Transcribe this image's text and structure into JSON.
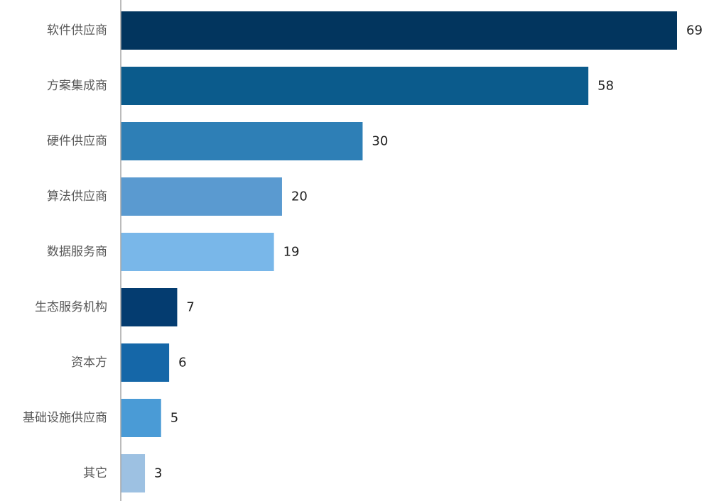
{
  "chart_data": {
    "type": "bar",
    "orientation": "horizontal",
    "categories": [
      "软件供应商",
      "方案集成商",
      "硬件供应商",
      "算法供应商",
      "数据服务商",
      "生态服务机构",
      "资本方",
      "基础设施供应商",
      "其它"
    ],
    "values": [
      69,
      58,
      30,
      20,
      19,
      7,
      6,
      5,
      3
    ],
    "bar_colors": [
      "#02355e",
      "#0b5b8c",
      "#2e7fb6",
      "#5a9ad0",
      "#79b7e9",
      "#043c70",
      "#1567a8",
      "#4a9bd6",
      "#9dc1e2"
    ],
    "axis_color": "#a6a6a6",
    "xlim": [
      0,
      69
    ],
    "title": "",
    "xlabel": "",
    "ylabel": "",
    "grid": false,
    "legend": "none"
  }
}
